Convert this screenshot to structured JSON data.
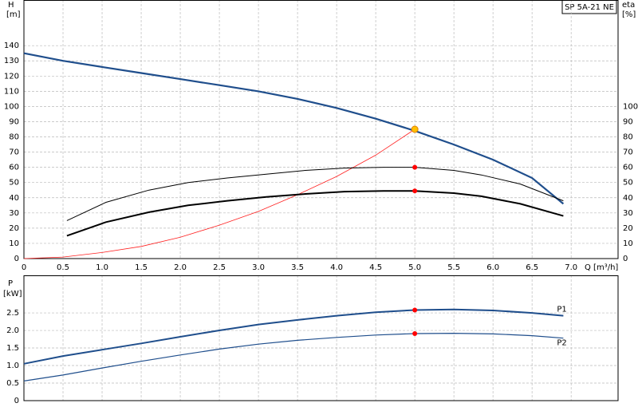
{
  "chart_data": [
    {
      "type": "line",
      "title": "SP 5A-21 NE",
      "y_label": "H",
      "y_unit": "[m]",
      "y2_label": "eta",
      "y2_unit": "[%]",
      "x_label": "Q [m³/h]",
      "xlim": [
        0,
        7.6
      ],
      "ylim": [
        0,
        170
      ],
      "y2lim": [
        0,
        170
      ],
      "grid": true,
      "xticks": [
        0,
        0.5,
        {
          "value": 1,
          "label": "1.0"
        },
        1.5,
        {
          "value": 2,
          "label": "2.0"
        },
        2.5,
        {
          "value": 3,
          "label": "3.0"
        },
        3.5,
        {
          "value": 4,
          "label": "4.0"
        },
        4.5,
        {
          "value": 5,
          "label": "5.0"
        },
        5.5,
        {
          "value": 6,
          "label": "6.0"
        },
        6.5,
        {
          "value": 7,
          "label": "7.0"
        }
      ],
      "yticks": [
        0,
        10,
        20,
        30,
        40,
        50,
        60,
        70,
        80,
        90,
        100,
        110,
        120,
        130,
        140
      ],
      "y2ticks": [
        0,
        10,
        20,
        30,
        40,
        50,
        60,
        70,
        80,
        90,
        100
      ],
      "series": [
        {
          "color": "#1f4e8c",
          "width": 2.2,
          "x": [
            0,
            0.5,
            1,
            1.5,
            2,
            2.5,
            3,
            3.5,
            4,
            4.5,
            5,
            5.5,
            6,
            6.5,
            6.9
          ],
          "values": [
            135,
            130,
            126,
            122,
            118,
            114,
            110,
            105,
            99,
            92,
            84,
            75,
            65,
            53,
            36
          ]
        },
        {
          "color": "#ff2020",
          "width": 0.8,
          "x": [
            0,
            0.5,
            1,
            1.5,
            2,
            2.5,
            3,
            3.5,
            4,
            4.5,
            5
          ],
          "values": [
            0,
            1,
            4,
            8,
            14,
            22,
            31,
            42,
            54,
            68,
            85
          ]
        },
        {
          "color": "#000000",
          "width": 1,
          "axis": "y2",
          "x": [
            0.55,
            1.05,
            1.6,
            2.1,
            2.6,
            3.1,
            3.6,
            4.1,
            4.6,
            5.0,
            5.5,
            5.85,
            6.35,
            6.9
          ],
          "values": [
            25,
            37,
            45,
            50,
            53,
            55.5,
            58,
            59.5,
            60,
            60,
            58,
            55,
            49,
            38
          ]
        },
        {
          "color": "#000000",
          "width": 2,
          "axis": "y2",
          "x": [
            0.55,
            1.05,
            1.6,
            2.1,
            2.6,
            3.1,
            3.6,
            4.1,
            4.6,
            5.0,
            5.5,
            5.85,
            6.35,
            6.9
          ],
          "values": [
            15,
            24,
            30.5,
            35,
            38,
            40.5,
            42.5,
            44,
            44.5,
            44.5,
            43,
            41,
            36,
            28
          ]
        }
      ],
      "points": [
        {
          "x": 5.0,
          "y": 85,
          "color": "#ffc000"
        },
        {
          "x": 5.0,
          "y": 60,
          "color": "#ff0000",
          "axis": "y2"
        },
        {
          "x": 5.0,
          "y": 44.5,
          "color": "#ff0000",
          "axis": "y2"
        }
      ]
    },
    {
      "type": "line",
      "y_label": "P",
      "y_unit": "[kW]",
      "xlim": [
        0,
        7.6
      ],
      "ylim": [
        0,
        3.57
      ],
      "grid": true,
      "yticks": [
        0,
        0.5,
        {
          "value": 1,
          "label": "1.0"
        },
        1.5,
        {
          "value": 2,
          "label": "2.0"
        },
        2.5
      ],
      "series": [
        {
          "name": "P1",
          "color": "#1f4e8c",
          "width": 2,
          "x": [
            0,
            0.5,
            1,
            1.5,
            2,
            2.5,
            3,
            3.5,
            4,
            4.5,
            5,
            5.5,
            6,
            6.5,
            6.9
          ],
          "values": [
            1.05,
            1.27,
            1.45,
            1.63,
            1.82,
            2.0,
            2.17,
            2.3,
            2.42,
            2.52,
            2.58,
            2.6,
            2.57,
            2.5,
            2.42
          ]
        },
        {
          "name": "P2",
          "color": "#1f4e8c",
          "width": 1.2,
          "x": [
            0,
            0.5,
            1,
            1.5,
            2,
            2.5,
            3,
            3.5,
            4,
            4.5,
            5,
            5.5,
            6,
            6.5,
            6.9
          ],
          "values": [
            0.56,
            0.73,
            0.93,
            1.12,
            1.3,
            1.47,
            1.61,
            1.72,
            1.8,
            1.87,
            1.91,
            1.92,
            1.9,
            1.85,
            1.78
          ]
        }
      ],
      "points": [
        {
          "x": 5.0,
          "y": 2.58,
          "color": "#ff0000"
        },
        {
          "x": 5.0,
          "y": 1.91,
          "color": "#ff0000"
        }
      ]
    }
  ]
}
